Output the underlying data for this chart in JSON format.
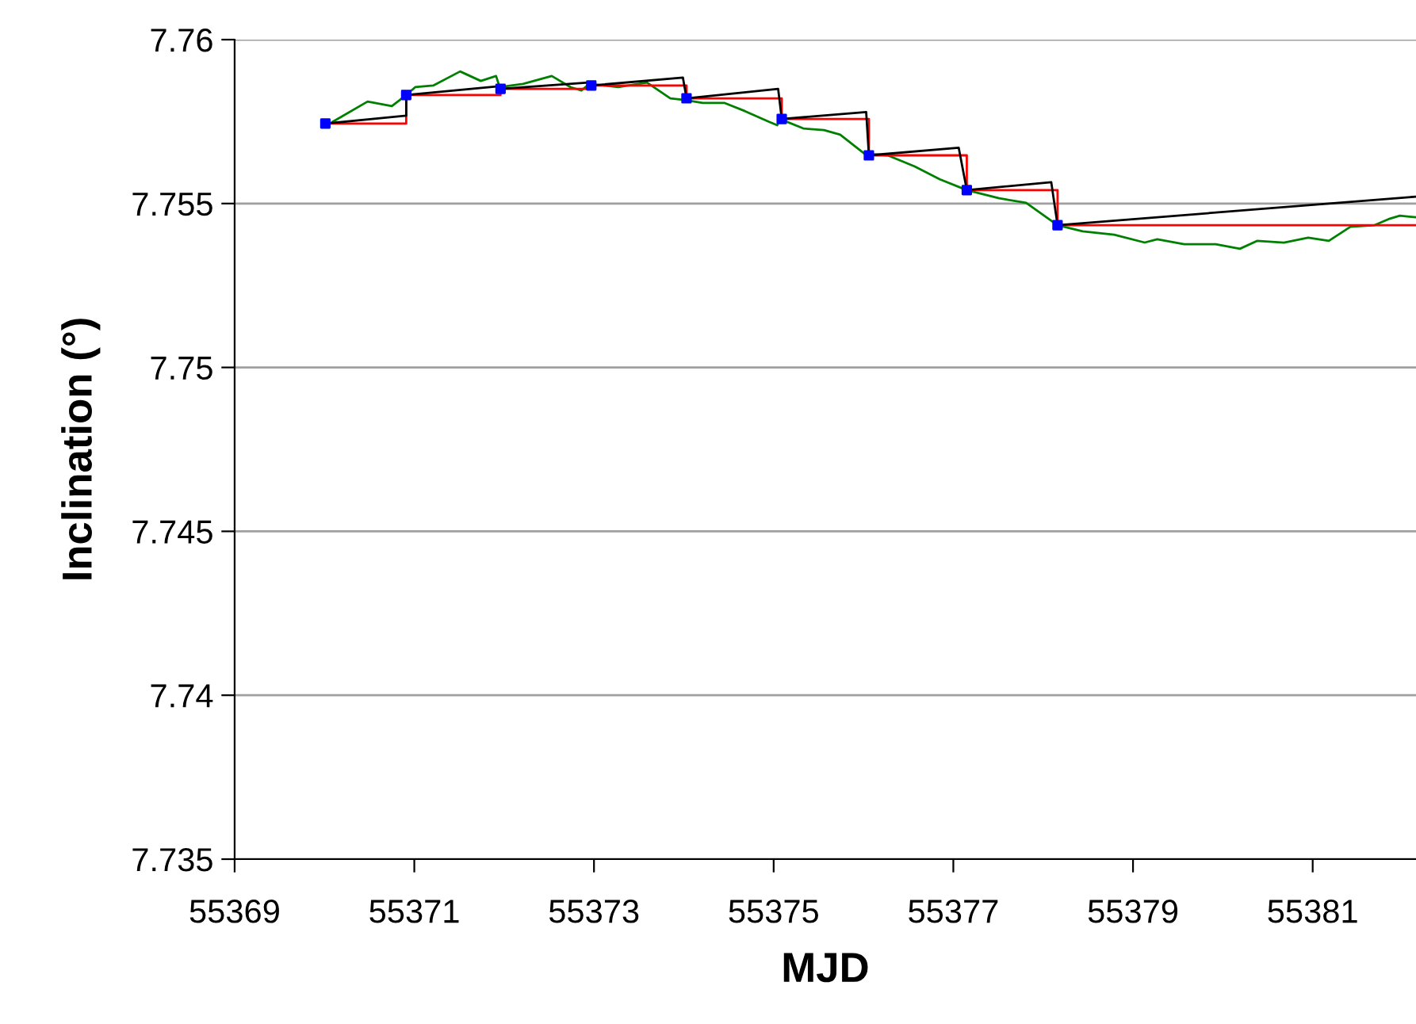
{
  "chart_data": {
    "type": "line",
    "xlabel": "MJD",
    "ylabel": "Inclination (°)",
    "xlim": [
      55369,
      55382.15
    ],
    "xticks": [
      55369,
      55371,
      55373,
      55375,
      55377,
      55379,
      55381
    ],
    "ylim": [
      7.735,
      7.76
    ],
    "yticks": [
      7.735,
      7.74,
      7.745,
      7.75,
      7.755,
      7.76
    ],
    "grid": "y",
    "legend": false,
    "series": [
      {
        "color": "#008000",
        "marker": "none",
        "x": [
          55370.09,
          55370.48,
          55370.75,
          55370.91,
          55371.01,
          55371.21,
          55371.51,
          55371.74,
          55371.91,
          55371.95,
          55372.21,
          55372.53,
          55372.74,
          55372.86,
          55372.95,
          55373.27,
          55373.59,
          55373.85,
          55374.01,
          55374.21,
          55374.45,
          55374.68,
          55374.95,
          55375.04,
          55375.07,
          55375.33,
          55375.56,
          55375.74,
          55376.01,
          55376.27,
          55376.57,
          55376.85,
          55377.15,
          55377.51,
          55377.81,
          55378.16,
          55378.44,
          55378.79,
          55379.13,
          55379.27,
          55379.57,
          55379.92,
          55380.19,
          55380.38,
          55380.68,
          55380.95,
          55381.18,
          55381.42,
          55381.69,
          55381.86,
          55381.97,
          55382.15
        ],
        "values": [
          7.75749,
          7.75811,
          7.75797,
          7.75831,
          7.75855,
          7.7586,
          7.75903,
          7.75874,
          7.75889,
          7.75855,
          7.75865,
          7.75889,
          7.75855,
          7.75845,
          7.75865,
          7.75855,
          7.75869,
          7.75821,
          7.75816,
          7.75807,
          7.75807,
          7.75782,
          7.75749,
          7.75739,
          7.75758,
          7.75729,
          7.75724,
          7.7571,
          7.75652,
          7.75647,
          7.75613,
          7.75574,
          7.75541,
          7.75516,
          7.75502,
          7.75434,
          7.75415,
          7.75405,
          7.75381,
          7.75391,
          7.75376,
          7.75376,
          7.75362,
          7.75386,
          7.75381,
          7.75396,
          7.75386,
          7.75429,
          7.75434,
          7.75454,
          7.75463,
          7.75458
        ]
      },
      {
        "type": "step",
        "color": "#ff0000",
        "marker": "none",
        "x": [
          55370.01,
          55370.91,
          55371.96,
          55372.97,
          55374.03,
          55375.09,
          55376.06,
          55377.15,
          55378.16,
          55382.15
        ],
        "values": [
          7.75744,
          7.75831,
          7.7585,
          7.7586,
          7.75821,
          7.75758,
          7.75647,
          7.75541,
          7.75434,
          7.75434
        ]
      },
      {
        "type": "line",
        "color": "#000000",
        "marker": "none",
        "x": [
          55370.01,
          55370.91,
          55370.91,
          55371.96,
          55371.96,
          55372.97,
          55372.97,
          55373.99,
          55374.03,
          55375.05,
          55375.09,
          55376.03,
          55376.06,
          55377.06,
          55377.15,
          55378.09,
          55378.16,
          55382.15
        ],
        "values": [
          7.75744,
          7.75768,
          7.75831,
          7.75858,
          7.7585,
          7.7587,
          7.7586,
          7.75884,
          7.75821,
          7.7585,
          7.75758,
          7.75779,
          7.75647,
          7.7567,
          7.75541,
          7.75565,
          7.75434,
          7.75521
        ]
      },
      {
        "type": "scatter",
        "color": "#0000ff",
        "marker": "square",
        "x": [
          55370.01,
          55370.91,
          55371.96,
          55372.97,
          55374.03,
          55375.09,
          55376.06,
          55377.15,
          55378.16
        ],
        "values": [
          7.75744,
          7.75831,
          7.7585,
          7.7586,
          7.75821,
          7.75758,
          7.75647,
          7.75541,
          7.75434
        ]
      }
    ]
  }
}
